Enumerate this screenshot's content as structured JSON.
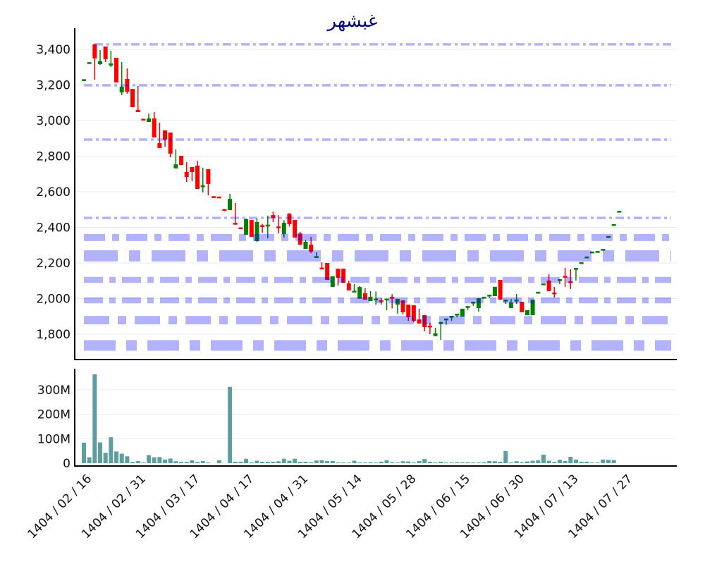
{
  "chart_data": [
    {
      "type": "candlestick",
      "title": "غبشهر",
      "title_color": "#000080",
      "ylim": [
        1650,
        3520
      ],
      "y_ticks": [
        "1,800",
        "2,000",
        "2,200",
        "2,400",
        "2,600",
        "2,800",
        "3,000",
        "3,200",
        "3,400"
      ],
      "y_tick_values": [
        1800,
        2000,
        2200,
        2400,
        2600,
        2800,
        3000,
        3200,
        3400
      ],
      "grid": true,
      "up_color": "#008000",
      "down_color": "#ff0000",
      "level_color": "#0000ff",
      "levels": [
        {
          "value": 3428,
          "style": "dash-dot"
        },
        {
          "value": 3198,
          "style": "dash-dot"
        },
        {
          "value": 2893,
          "style": "dash-dot"
        },
        {
          "value": 2453,
          "style": "dash-dot"
        },
        {
          "value": 2343,
          "style": "band"
        },
        {
          "value": 2240,
          "style": "band"
        },
        {
          "value": 2105,
          "style": "band"
        },
        {
          "value": 1990,
          "style": "band"
        },
        {
          "value": 1879,
          "style": "band"
        },
        {
          "value": 1737,
          "style": "band"
        }
      ],
      "ohlc": [
        [
          3228,
          3232,
          3228,
          3232
        ],
        [
          3322,
          3328,
          3322,
          3328
        ],
        [
          3428,
          3430,
          3230,
          3349
        ],
        [
          3317,
          3396,
          3313,
          3333
        ],
        [
          3416,
          3416,
          3329,
          3345
        ],
        [
          3309,
          3392,
          3301,
          3321
        ],
        [
          3352,
          3352,
          3214,
          3214
        ],
        [
          3158,
          3329,
          3143,
          3190
        ],
        [
          3234,
          3293,
          3151,
          3162
        ],
        [
          3178,
          3178,
          3075,
          3075
        ],
        [
          3060,
          3194,
          3048,
          3048
        ],
        [
          3010,
          3010,
          3005,
          3005
        ],
        [
          2992,
          3040,
          2992,
          3012
        ],
        [
          3012,
          3048,
          2905,
          2905
        ],
        [
          2873,
          2988,
          2846,
          2846
        ],
        [
          2945,
          2945,
          2853,
          2893
        ],
        [
          2933,
          2933,
          2794,
          2814
        ],
        [
          2731,
          2838,
          2731,
          2754
        ],
        [
          2802,
          2802,
          2750,
          2750
        ],
        [
          2711,
          2766,
          2655,
          2683
        ],
        [
          2739,
          2739,
          2659,
          2711
        ],
        [
          2747,
          2774,
          2616,
          2616
        ],
        [
          2628,
          2735,
          2596,
          2636
        ],
        [
          2727,
          2727,
          2580,
          2644
        ],
        [
          2575,
          2575,
          2570,
          2570
        ],
        [
          2573,
          2573,
          2570,
          2570
        ],
        [
          2503,
          2503,
          2499,
          2499
        ],
        [
          2497,
          2588,
          2497,
          2560
        ],
        [
          2425,
          2537,
          2420,
          2420
        ],
        [
          2400,
          2400,
          2396,
          2396
        ],
        [
          2359,
          2450,
          2359,
          2446
        ],
        [
          2442,
          2442,
          2347,
          2347
        ],
        [
          2323,
          2450,
          2318,
          2430
        ],
        [
          2412,
          2420,
          2370,
          2406
        ],
        [
          2405,
          2465,
          2339,
          2415
        ],
        [
          2469,
          2489,
          2430,
          2454
        ],
        [
          2405,
          2469,
          2366,
          2399
        ],
        [
          2362,
          2440,
          2343,
          2426
        ],
        [
          2477,
          2480,
          2405,
          2418
        ],
        [
          2442,
          2442,
          2343,
          2343
        ],
        [
          2366,
          2375,
          2300,
          2303
        ],
        [
          2279,
          2330,
          2279,
          2319
        ],
        [
          2303,
          2347,
          2255,
          2264
        ],
        [
          2232,
          2260,
          2232,
          2238
        ],
        [
          2174,
          2204,
          2170,
          2170
        ],
        [
          2200,
          2200,
          2105,
          2105
        ],
        [
          2066,
          2125,
          2066,
          2125
        ],
        [
          2168,
          2168,
          2073,
          2117
        ],
        [
          2168,
          2168,
          2089,
          2089
        ],
        [
          2085,
          2101,
          2046,
          2046
        ],
        [
          2040,
          2081,
          2040,
          2044
        ],
        [
          2000,
          2070,
          1998,
          2065
        ],
        [
          2030,
          2058,
          1994,
          1994
        ],
        [
          1986,
          2042,
          1986,
          2010
        ],
        [
          1995,
          2040,
          1965,
          2000
        ],
        [
          1990,
          2002,
          1966,
          1985
        ],
        [
          1995,
          2000,
          1935,
          2000
        ],
        [
          2010,
          2025,
          1945,
          2005
        ],
        [
          1966,
          1998,
          1915,
          1998
        ],
        [
          1990,
          1990,
          1911,
          1923
        ],
        [
          1966,
          1966,
          1875,
          1895
        ],
        [
          1963,
          1963,
          1867,
          1875
        ],
        [
          1883,
          1943,
          1860,
          1860
        ],
        [
          1907,
          1907,
          1816,
          1840
        ],
        [
          1848,
          1864,
          1800,
          1843
        ],
        [
          1790,
          1836,
          1788,
          1805
        ],
        [
          1862,
          1870,
          1768,
          1868
        ],
        [
          1882,
          1888,
          1852,
          1888
        ],
        [
          1898,
          1903,
          1875,
          1903
        ],
        [
          1910,
          1915,
          1895,
          1915
        ],
        [
          1899,
          1943,
          1899,
          1943
        ],
        [
          1953,
          1958,
          1935,
          1958
        ],
        [
          1977,
          1982,
          1960,
          1982
        ],
        [
          1947,
          2002,
          1927,
          2002
        ],
        [
          2006,
          2010,
          2006,
          2010
        ],
        [
          2018,
          2022,
          2002,
          2022
        ],
        [
          2014,
          2066,
          2014,
          2066
        ],
        [
          2105,
          2105,
          1994,
          1994
        ],
        [
          1990,
          1994,
          1970,
          1994
        ],
        [
          1947,
          1998,
          1947,
          1978
        ],
        [
          1990,
          2026,
          1970,
          1994
        ],
        [
          1982,
          1982,
          1923,
          1923
        ],
        [
          1907,
          1935,
          1907,
          1935
        ],
        [
          1907,
          1994,
          1907,
          1994
        ],
        [
          2034,
          2038,
          2034,
          2038
        ],
        [
          2081,
          2085,
          2081,
          2085
        ],
        [
          2101,
          2137,
          2042,
          2042
        ],
        [
          2034,
          2066,
          2006,
          2028
        ],
        [
          2105,
          2109,
          2081,
          2109
        ],
        [
          2127,
          2172,
          2066,
          2121
        ],
        [
          2097,
          2164,
          2054,
          2091
        ],
        [
          2166,
          2172,
          2101,
          2172
        ],
        [
          2200,
          2204,
          2200,
          2204
        ],
        [
          2232,
          2236,
          2232,
          2236
        ],
        [
          2260,
          2264,
          2260,
          2264
        ],
        [
          2263,
          2267,
          2263,
          2267
        ],
        [
          2275,
          2279,
          2275,
          2279
        ],
        [
          2347,
          2351,
          2347,
          2351
        ],
        [
          2414,
          2418,
          2414,
          2418
        ],
        [
          2489,
          2493,
          2489,
          2493
        ]
      ],
      "x_ticks": [
        "1404 / 02 / 16",
        "1404 / 02 / 31",
        "1404 / 03 / 17",
        "1404 / 04 / 17",
        "1404 / 04 / 31",
        "1404 / 05 / 14",
        "1404 / 05 / 28",
        "1404 / 06 / 15",
        "1404 / 06 / 30",
        "1404 / 07 / 13",
        "1404 / 07 / 27"
      ]
    },
    {
      "type": "bar",
      "color": "#5f9ea0",
      "ylim": [
        0,
        380
      ],
      "unit": "M",
      "y_ticks": [
        "0",
        "100M",
        "200M",
        "300M"
      ],
      "y_tick_values": [
        0,
        100,
        200,
        300
      ],
      "grid": true,
      "values": [
        84,
        24,
        363,
        85,
        42,
        106,
        48,
        39,
        28,
        5,
        9,
        1,
        33,
        24,
        25,
        15,
        19,
        8,
        5,
        5,
        12,
        5,
        9,
        2,
        0,
        12,
        0,
        312,
        6,
        6,
        18,
        3,
        10,
        6,
        6,
        6,
        8,
        18,
        10,
        18,
        6,
        6,
        4,
        11,
        12,
        9,
        9,
        3,
        2,
        2,
        10,
        3,
        3,
        4,
        1,
        6,
        12,
        4,
        1,
        8,
        7,
        2,
        9,
        17,
        6,
        3,
        6,
        3,
        3,
        4,
        4,
        4,
        3,
        3,
        4,
        9,
        8,
        6,
        50,
        1,
        8,
        4,
        7,
        10,
        12,
        35,
        10,
        5,
        14,
        9,
        26,
        15,
        6,
        6,
        1,
        1,
        15,
        14,
        13,
        0
      ]
    }
  ]
}
